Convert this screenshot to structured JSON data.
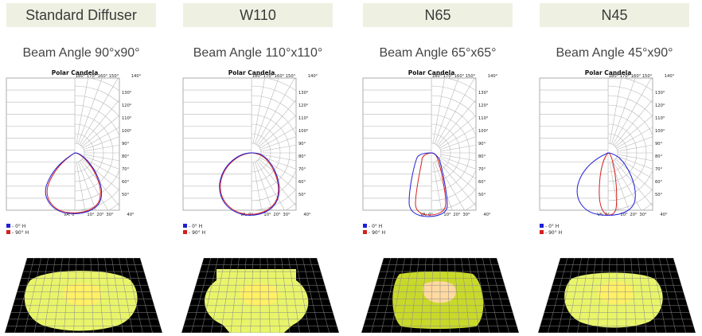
{
  "chart_title": "Polar Candela",
  "axis_top_labels": [
    "180°",
    "170°",
    "160°",
    "150°",
    "140°"
  ],
  "axis_bottom_labels": [
    "VA: 0°",
    "10°",
    "20°",
    "30°",
    "40°"
  ],
  "axis_right_labels": [
    "130°",
    "120°",
    "110°",
    "100°",
    "90°",
    "80°",
    "70°",
    "60°",
    "50°"
  ],
  "legend": [
    {
      "label": "- 0° H",
      "color": "#1f1fd6"
    },
    {
      "label": "- 90° H",
      "color": "#d61f1f"
    }
  ],
  "colors": {
    "header_bg": "#eef1e2",
    "grid": "#b8b8b8",
    "iso_outer": "#e8f56a",
    "iso_inner": "#fff066",
    "iso_dark": "#c9d92a",
    "iso_peach": "#ffd9a0"
  },
  "panels": [
    {
      "name": "Standard Diffuser",
      "beam": "Beam Angle 90°x90°"
    },
    {
      "name": "W110",
      "beam": "Beam Angle 110°x110°"
    },
    {
      "name": "N65",
      "beam": "Beam Angle 65°x65°"
    },
    {
      "name": "N45",
      "beam": "Beam Angle 45°x90°"
    }
  ]
}
